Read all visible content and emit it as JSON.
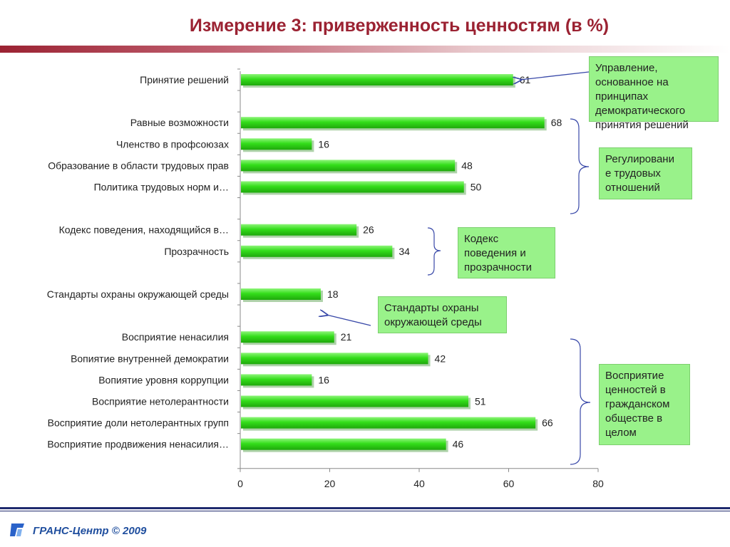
{
  "title": "Измерение 3: приверженность ценностям (в %)",
  "footer": {
    "text": "ГРАНС-Центр © 2009"
  },
  "colors": {
    "title": "#9b2232",
    "bar": "#33dd1a",
    "callout_bg": "#99f28a",
    "footer": "#1f2a6e"
  },
  "callouts": [
    {
      "lines": [
        "Управление,",
        "основанное на",
        "принципах",
        "демократического",
        "принятия решений"
      ]
    },
    {
      "lines": [
        "Регулировани",
        "е трудовых",
        "отношений"
      ]
    },
    {
      "lines": [
        "Кодекс",
        "поведения и",
        "прозрачности"
      ]
    },
    {
      "lines": [
        "Стандарты охраны",
        "окружающей среды"
      ]
    },
    {
      "lines": [
        "Восприятие",
        "ценностей в",
        "гражданском",
        "обществе в",
        "целом"
      ]
    }
  ],
  "chart_data": {
    "type": "bar",
    "orientation": "horizontal",
    "categories": [
      "Принятие решений",
      "",
      "Равные возможности",
      "Членство в профсоюзах",
      "Образование в области трудовых прав",
      "Политика трудовых норм и…",
      "",
      "Кодекс поведения, находящийся в…",
      "Прозрачность",
      "",
      "Стандарты охраны окружающей среды",
      "",
      "Восприятие ненасилия",
      "Вопиятие внутренней демократии",
      "Вопиятие уровня коррупции",
      "Восприятие нетолерантности",
      "Восприятие доли нетолерантных групп",
      "Восприятие продвижения ненасилия…"
    ],
    "values": [
      61,
      null,
      68,
      16,
      48,
      50,
      null,
      26,
      34,
      null,
      18,
      null,
      21,
      42,
      16,
      51,
      66,
      46
    ],
    "xlim": [
      0,
      80
    ],
    "xticks": [
      0,
      20,
      40,
      60,
      80
    ],
    "grid": false,
    "legend": "none"
  }
}
